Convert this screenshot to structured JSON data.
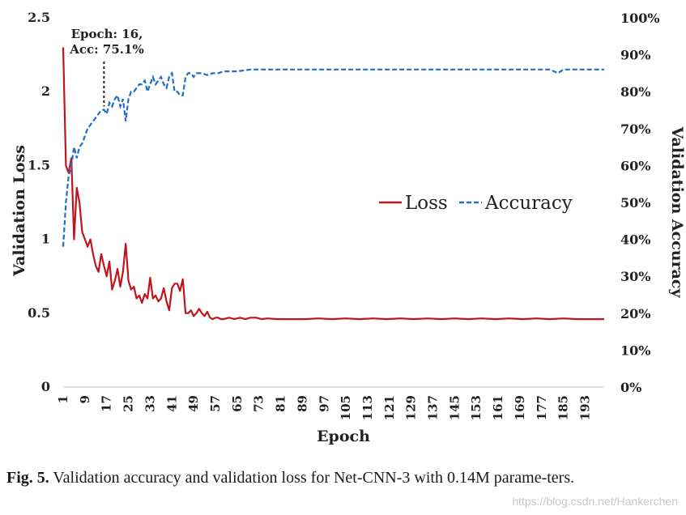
{
  "chart_data": {
    "type": "line",
    "xlabel": "Epoch",
    "ylabel": "Validation Loss",
    "ylabel_right": "Validation Accuracy",
    "ylim": [
      0,
      2.5
    ],
    "ylim_right": [
      0,
      100
    ],
    "y_ticks": [
      "0",
      "0.5",
      "1",
      "1.5",
      "2",
      "2.5"
    ],
    "y_ticks_right": [
      "0%",
      "10%",
      "20%",
      "30%",
      "40%",
      "50%",
      "60%",
      "70%",
      "80%",
      "90%",
      "100%"
    ],
    "x_range": [
      1,
      200
    ],
    "x_ticks": [
      "1",
      "9",
      "17",
      "25",
      "33",
      "41",
      "49",
      "57",
      "65",
      "73",
      "81",
      "89",
      "97",
      "105",
      "113",
      "121",
      "129",
      "137",
      "145",
      "153",
      "161",
      "169",
      "177",
      "185",
      "193"
    ],
    "legend_position": "center-right",
    "annotation": {
      "line1": "Epoch: 16,",
      "line2": "Acc: 75.1%",
      "epoch": 16,
      "accuracy": 75.1
    },
    "series": [
      {
        "name": "Loss",
        "axis": "left",
        "color": "#c0141e",
        "dash": "solid",
        "points": [
          [
            1,
            2.3
          ],
          [
            2,
            1.5
          ],
          [
            3,
            1.45
          ],
          [
            4,
            1.55
          ],
          [
            5,
            1.0
          ],
          [
            6,
            1.35
          ],
          [
            7,
            1.25
          ],
          [
            8,
            1.05
          ],
          [
            9,
            1.0
          ],
          [
            10,
            0.95
          ],
          [
            11,
            1.0
          ],
          [
            12,
            0.9
          ],
          [
            13,
            0.82
          ],
          [
            14,
            0.78
          ],
          [
            15,
            0.9
          ],
          [
            16,
            0.82
          ],
          [
            17,
            0.75
          ],
          [
            18,
            0.85
          ],
          [
            19,
            0.66
          ],
          [
            20,
            0.72
          ],
          [
            21,
            0.8
          ],
          [
            22,
            0.68
          ],
          [
            23,
            0.78
          ],
          [
            24,
            0.97
          ],
          [
            25,
            0.72
          ],
          [
            26,
            0.66
          ],
          [
            27,
            0.68
          ],
          [
            28,
            0.6
          ],
          [
            29,
            0.62
          ],
          [
            30,
            0.57
          ],
          [
            31,
            0.63
          ],
          [
            32,
            0.6
          ],
          [
            33,
            0.74
          ],
          [
            34,
            0.6
          ],
          [
            35,
            0.62
          ],
          [
            36,
            0.58
          ],
          [
            37,
            0.6
          ],
          [
            38,
            0.67
          ],
          [
            39,
            0.58
          ],
          [
            40,
            0.52
          ],
          [
            41,
            0.67
          ],
          [
            42,
            0.7
          ],
          [
            43,
            0.7
          ],
          [
            44,
            0.65
          ],
          [
            45,
            0.73
          ],
          [
            46,
            0.5
          ],
          [
            47,
            0.5
          ],
          [
            48,
            0.52
          ],
          [
            49,
            0.48
          ],
          [
            50,
            0.5
          ],
          [
            51,
            0.53
          ],
          [
            52,
            0.5
          ],
          [
            53,
            0.48
          ],
          [
            54,
            0.51
          ],
          [
            55,
            0.47
          ],
          [
            56,
            0.46
          ],
          [
            57,
            0.47
          ],
          [
            58,
            0.47
          ],
          [
            59,
            0.46
          ],
          [
            60,
            0.46
          ],
          [
            62,
            0.47
          ],
          [
            64,
            0.46
          ],
          [
            66,
            0.47
          ],
          [
            68,
            0.46
          ],
          [
            70,
            0.47
          ],
          [
            72,
            0.47
          ],
          [
            74,
            0.46
          ],
          [
            76,
            0.465
          ],
          [
            80,
            0.46
          ],
          [
            85,
            0.46
          ],
          [
            90,
            0.46
          ],
          [
            95,
            0.465
          ],
          [
            100,
            0.46
          ],
          [
            105,
            0.465
          ],
          [
            110,
            0.46
          ],
          [
            115,
            0.465
          ],
          [
            120,
            0.46
          ],
          [
            125,
            0.465
          ],
          [
            130,
            0.46
          ],
          [
            135,
            0.465
          ],
          [
            140,
            0.46
          ],
          [
            145,
            0.465
          ],
          [
            150,
            0.46
          ],
          [
            155,
            0.465
          ],
          [
            160,
            0.46
          ],
          [
            165,
            0.465
          ],
          [
            170,
            0.46
          ],
          [
            175,
            0.465
          ],
          [
            180,
            0.46
          ],
          [
            185,
            0.465
          ],
          [
            190,
            0.46
          ],
          [
            195,
            0.46
          ],
          [
            200,
            0.46
          ]
        ]
      },
      {
        "name": "Accuracy",
        "axis": "right",
        "color": "#1f6fc5",
        "dash": "dashed",
        "points": [
          [
            1,
            38
          ],
          [
            2,
            50
          ],
          [
            3,
            57
          ],
          [
            4,
            60
          ],
          [
            5,
            65
          ],
          [
            6,
            62
          ],
          [
            7,
            65
          ],
          [
            8,
            66
          ],
          [
            9,
            68
          ],
          [
            10,
            70
          ],
          [
            11,
            71
          ],
          [
            12,
            72
          ],
          [
            13,
            73
          ],
          [
            14,
            74
          ],
          [
            15,
            75
          ],
          [
            16,
            75.1
          ],
          [
            17,
            74
          ],
          [
            18,
            77
          ],
          [
            19,
            76
          ],
          [
            20,
            78
          ],
          [
            21,
            79
          ],
          [
            22,
            76
          ],
          [
            23,
            78
          ],
          [
            24,
            72
          ],
          [
            25,
            78
          ],
          [
            26,
            80
          ],
          [
            27,
            80
          ],
          [
            28,
            81
          ],
          [
            29,
            82
          ],
          [
            30,
            82
          ],
          [
            31,
            83
          ],
          [
            32,
            80
          ],
          [
            33,
            82
          ],
          [
            34,
            84
          ],
          [
            35,
            82
          ],
          [
            36,
            83
          ],
          [
            37,
            84
          ],
          [
            38,
            82
          ],
          [
            39,
            81
          ],
          [
            40,
            84
          ],
          [
            41,
            85
          ],
          [
            42,
            80
          ],
          [
            43,
            80
          ],
          [
            44,
            79
          ],
          [
            45,
            79
          ],
          [
            46,
            84
          ],
          [
            47,
            85
          ],
          [
            48,
            85
          ],
          [
            49,
            84
          ],
          [
            50,
            85
          ],
          [
            52,
            85
          ],
          [
            54,
            84.5
          ],
          [
            56,
            85
          ],
          [
            58,
            85
          ],
          [
            60,
            85.5
          ],
          [
            65,
            85.5
          ],
          [
            70,
            86
          ],
          [
            75,
            86
          ],
          [
            80,
            86
          ],
          [
            85,
            86
          ],
          [
            90,
            86
          ],
          [
            95,
            86
          ],
          [
            100,
            86
          ],
          [
            105,
            86
          ],
          [
            110,
            86
          ],
          [
            115,
            86
          ],
          [
            120,
            86
          ],
          [
            125,
            86
          ],
          [
            130,
            86
          ],
          [
            135,
            86
          ],
          [
            140,
            86
          ],
          [
            145,
            86
          ],
          [
            150,
            86
          ],
          [
            155,
            86
          ],
          [
            160,
            86
          ],
          [
            165,
            86
          ],
          [
            170,
            86
          ],
          [
            175,
            86
          ],
          [
            180,
            86
          ],
          [
            183,
            85
          ],
          [
            185,
            86
          ],
          [
            190,
            86
          ],
          [
            195,
            86
          ],
          [
            200,
            86
          ]
        ]
      }
    ]
  },
  "caption": {
    "label": "Fig. 5.",
    "text": "Validation accuracy and validation loss for Net-CNN-3 with 0.14M parame-ters."
  },
  "watermark": "https://blog.csdn.net/Hankerchen"
}
